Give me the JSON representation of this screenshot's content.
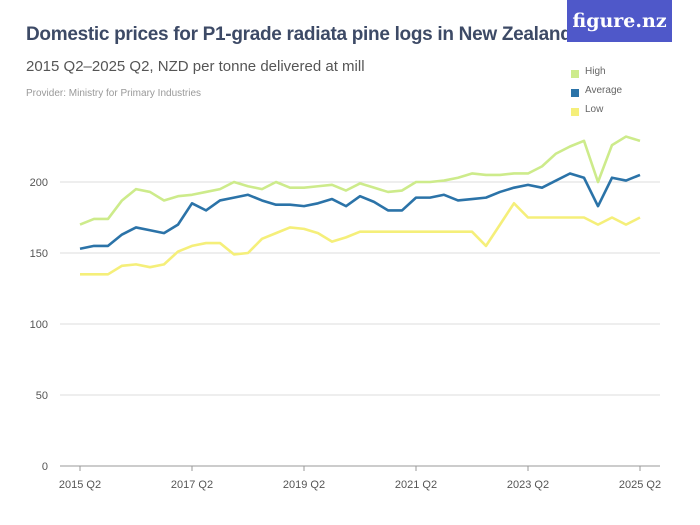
{
  "title": "Domestic prices for P1-grade radiata pine logs in New Zealand",
  "subtitle": "2015 Q2–2025 Q2, NZD per tonne delivered at mill",
  "provider": "Provider: Ministry for Primary Industries",
  "logo_text": "figure.nz",
  "chart_data": {
    "type": "line",
    "title": "Domestic prices for P1-grade radiata pine logs in New Zealand",
    "x_start": "2015 Q2",
    "x_end": "2025 Q2",
    "x_frequency": "quarterly",
    "x_tick_labels": [
      "2015 Q2",
      "2017 Q2",
      "2019 Q2",
      "2021 Q2",
      "2023 Q2",
      "2025 Q2"
    ],
    "y_ticks": [
      0,
      50,
      100,
      150,
      200
    ],
    "ylim": [
      0,
      235
    ],
    "grid": true,
    "legend_position": "top-right",
    "series": [
      {
        "name": "High",
        "color": "#cdeb8b",
        "values": [
          170,
          174,
          174,
          187,
          195,
          193,
          187,
          190,
          191,
          193,
          195,
          200,
          197,
          195,
          200,
          196,
          196,
          197,
          198,
          194,
          199,
          196,
          193,
          194,
          200,
          200,
          201,
          203,
          206,
          205,
          205,
          206,
          206,
          211,
          220,
          225,
          229,
          200,
          226,
          232,
          229
        ]
      },
      {
        "name": "Average",
        "color": "#2b73a8",
        "values": [
          153,
          155,
          155,
          163,
          168,
          166,
          164,
          170,
          185,
          180,
          187,
          189,
          191,
          187,
          184,
          184,
          183,
          185,
          188,
          183,
          190,
          186,
          180,
          180,
          189,
          189,
          191,
          187,
          188,
          189,
          193,
          196,
          198,
          196,
          201,
          206,
          203,
          183,
          203,
          201,
          205
        ]
      },
      {
        "name": "Low",
        "color": "#f5ef7a",
        "values": [
          135,
          135,
          135,
          141,
          142,
          140,
          142,
          151,
          155,
          157,
          157,
          149,
          150,
          160,
          164,
          168,
          167,
          164,
          158,
          161,
          165,
          165,
          165,
          165,
          165,
          165,
          165,
          165,
          165,
          155,
          170,
          185,
          175,
          175,
          175,
          175,
          175,
          170,
          175,
          170,
          175
        ]
      }
    ]
  }
}
